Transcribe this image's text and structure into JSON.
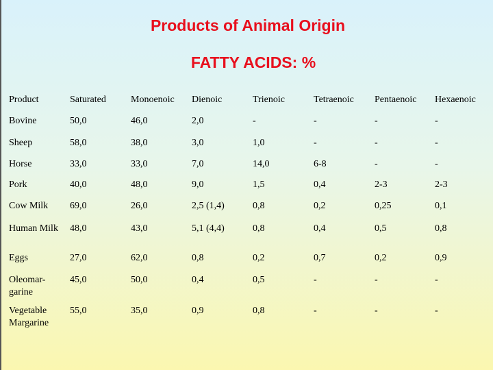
{
  "header": {
    "title": "Products  of Animal Origin",
    "subtitle": "FATTY ACIDS: %"
  },
  "table": {
    "columns": [
      "Product",
      "Saturated",
      "Monoenoic",
      "Dienoic",
      "Trienoic",
      "Tetraenoic",
      "Pentaenoic",
      "Hexaenoic"
    ],
    "rows": [
      [
        "Bovine",
        "50,0",
        "46,0",
        "2,0",
        "-",
        "-",
        "-",
        "-"
      ],
      [
        "Sheep",
        "58,0",
        "38,0",
        "3,0",
        "1,0",
        "-",
        "-",
        "-"
      ],
      [
        "Horse",
        "33,0",
        "33,0",
        "7,0",
        "14,0",
        "6-8",
        "-",
        "-"
      ],
      [
        "Pork",
        "40,0",
        "48,0",
        "9,0",
        "1,5",
        "0,4",
        "2-3",
        "2-3"
      ],
      [
        "Cow Milk",
        "69,0",
        "26,0",
        "2,5 (1,4)",
        "0,8",
        "0,2",
        "0,25",
        "0,1"
      ],
      [
        "Human Milk",
        "48,0",
        "43,0",
        "5,1 (4,4)",
        "0,8",
        "0,4",
        "0,5",
        "0,8"
      ],
      [
        "Eggs",
        "27,0",
        "62,0",
        "0,8",
        "0,2",
        "0,7",
        "0,2",
        "0,9"
      ],
      [
        "Oleomar- garine",
        "45,0",
        "50,0",
        "0,4",
        "0,5",
        "-",
        "-",
        "-"
      ],
      [
        "Vegetable Margarine",
        "55,0",
        "35,0",
        "0,9",
        "0,8",
        "-",
        "-",
        "-"
      ]
    ]
  }
}
